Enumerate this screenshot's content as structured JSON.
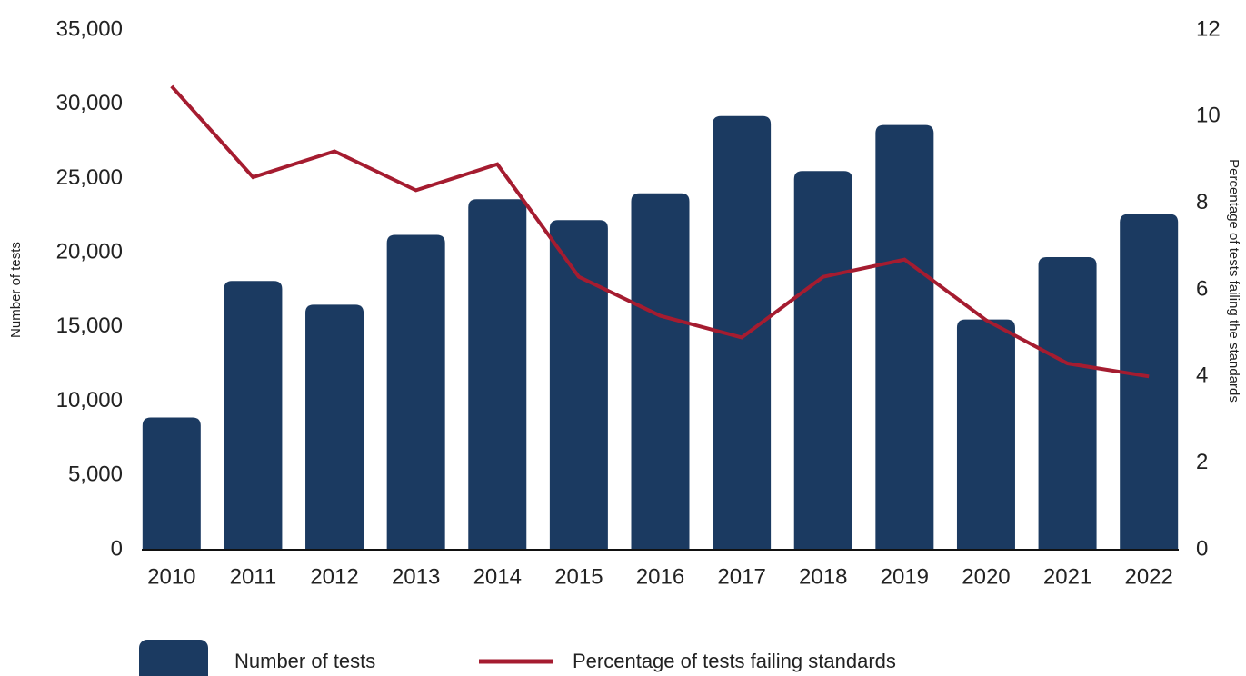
{
  "chart_data": {
    "type": "bar_line",
    "categories": [
      "2010",
      "2011",
      "2012",
      "2013",
      "2014",
      "2015",
      "2016",
      "2017",
      "2018",
      "2019",
      "2020",
      "2021",
      "2022"
    ],
    "series": [
      {
        "name": "Number of tests",
        "type": "bar",
        "color": "#1b3a61",
        "axis": "y",
        "values": [
          8900,
          18100,
          16500,
          21200,
          23600,
          22200,
          24000,
          29200,
          25500,
          28600,
          15500,
          19700,
          22600
        ]
      },
      {
        "name": "Percentage of tests failing standards",
        "type": "line",
        "color": "#a51c30",
        "axis": "y2",
        "values": [
          10.7,
          8.6,
          9.2,
          8.3,
          8.9,
          6.3,
          5.4,
          4.9,
          6.3,
          6.7,
          5.3,
          4.3,
          4.0
        ]
      }
    ],
    "ylabel": "Number of tests",
    "y2label": "Percentage of tests failing the standards",
    "ylim": [
      0,
      35000
    ],
    "yticks": [
      {
        "value": 0,
        "label": "0"
      },
      {
        "value": 5000,
        "label": "5,000"
      },
      {
        "value": 10000,
        "label": "10,000"
      },
      {
        "value": 15000,
        "label": "15,000"
      },
      {
        "value": 20000,
        "label": "20,000"
      },
      {
        "value": 25000,
        "label": "25,000"
      },
      {
        "value": 30000,
        "label": "30,000"
      },
      {
        "value": 35000,
        "label": "35,000"
      }
    ],
    "y2lim": [
      0,
      12
    ],
    "y2ticks": [
      0,
      2,
      4,
      6,
      8,
      10,
      12
    ],
    "legend": "bottom"
  }
}
